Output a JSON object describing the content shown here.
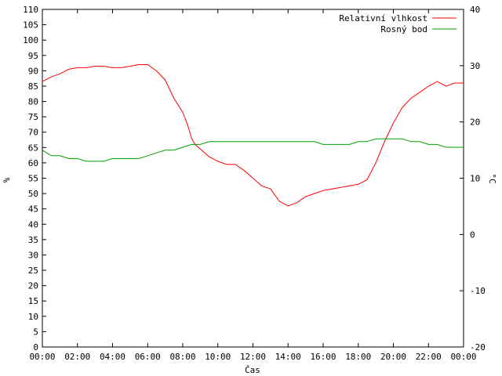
{
  "chart_data": {
    "type": "line",
    "xlabel": "Čas",
    "ylabel_left": "%",
    "ylabel_right": "°C",
    "ylim_left": [
      0,
      110
    ],
    "ylim_right": [
      -20,
      40
    ],
    "yticks_left": [
      "0",
      "5",
      "10",
      "15",
      "20",
      "25",
      "30",
      "35",
      "40",
      "45",
      "50",
      "55",
      "60",
      "65",
      "70",
      "75",
      "80",
      "85",
      "90",
      "95",
      "100",
      "105",
      "110"
    ],
    "yticks_right": [
      "-20",
      "-10",
      "0",
      "10",
      "20",
      "30",
      "40"
    ],
    "xticks": [
      "00:00",
      "02:00",
      "04:00",
      "06:00",
      "08:00",
      "10:00",
      "12:00",
      "14:00",
      "16:00",
      "18:00",
      "20:00",
      "22:00",
      "00:00"
    ],
    "xlim_hours": [
      0,
      24
    ],
    "grid": false,
    "legend_position": "top-right",
    "series": [
      {
        "name": "Relativní vlhkost",
        "axis": "left",
        "color": "#ff0000",
        "points": [
          [
            0,
            86.5
          ],
          [
            0.5,
            88
          ],
          [
            1,
            89
          ],
          [
            1.5,
            90.5
          ],
          [
            2,
            91
          ],
          [
            2.5,
            91
          ],
          [
            3,
            91.5
          ],
          [
            3.5,
            91.5
          ],
          [
            4,
            91
          ],
          [
            4.5,
            91
          ],
          [
            5,
            91.5
          ],
          [
            5.5,
            92
          ],
          [
            6,
            92
          ],
          [
            6.5,
            90
          ],
          [
            7,
            87
          ],
          [
            7.5,
            81
          ],
          [
            8,
            76.5
          ],
          [
            8.3,
            72
          ],
          [
            8.5,
            68
          ],
          [
            8.7,
            66
          ],
          [
            9,
            64.5
          ],
          [
            9.5,
            62
          ],
          [
            10,
            60.5
          ],
          [
            10.5,
            59.5
          ],
          [
            11,
            59.5
          ],
          [
            11.5,
            57.5
          ],
          [
            12,
            55
          ],
          [
            12.5,
            52.5
          ],
          [
            13,
            51.5
          ],
          [
            13.5,
            47.5
          ],
          [
            14,
            46
          ],
          [
            14.5,
            47
          ],
          [
            15,
            49
          ],
          [
            15.5,
            50
          ],
          [
            16,
            51
          ],
          [
            16.5,
            51.5
          ],
          [
            17,
            52
          ],
          [
            17.5,
            52.5
          ],
          [
            18,
            53
          ],
          [
            18.5,
            54.5
          ],
          [
            19,
            60
          ],
          [
            19.5,
            67
          ],
          [
            20,
            73
          ],
          [
            20.5,
            78
          ],
          [
            21,
            81
          ],
          [
            21.5,
            83
          ],
          [
            22,
            85
          ],
          [
            22.5,
            86.5
          ],
          [
            23,
            85
          ],
          [
            23.5,
            86
          ],
          [
            24,
            86
          ]
        ]
      },
      {
        "name": "Rosný bod",
        "axis": "right",
        "color": "#00a000",
        "points": [
          [
            0,
            15
          ],
          [
            0.5,
            14
          ],
          [
            1,
            14
          ],
          [
            1.5,
            13.5
          ],
          [
            2,
            13.5
          ],
          [
            2.5,
            13
          ],
          [
            3,
            13
          ],
          [
            3.5,
            13
          ],
          [
            4,
            13.5
          ],
          [
            4.5,
            13.5
          ],
          [
            5,
            13.5
          ],
          [
            5.5,
            13.5
          ],
          [
            6,
            14
          ],
          [
            6.5,
            14.5
          ],
          [
            7,
            15
          ],
          [
            7.5,
            15
          ],
          [
            8,
            15.5
          ],
          [
            8.5,
            16
          ],
          [
            9,
            16
          ],
          [
            9.5,
            16.5
          ],
          [
            10,
            16.5
          ],
          [
            10.5,
            16.5
          ],
          [
            11,
            16.5
          ],
          [
            11.5,
            16.5
          ],
          [
            12,
            16.5
          ],
          [
            12.5,
            16.5
          ],
          [
            13,
            16.5
          ],
          [
            13.5,
            16.5
          ],
          [
            14,
            16.5
          ],
          [
            14.5,
            16.5
          ],
          [
            15,
            16.5
          ],
          [
            15.5,
            16.5
          ],
          [
            16,
            16
          ],
          [
            16.5,
            16
          ],
          [
            17,
            16
          ],
          [
            17.5,
            16
          ],
          [
            18,
            16.5
          ],
          [
            18.5,
            16.5
          ],
          [
            19,
            17
          ],
          [
            19.5,
            17
          ],
          [
            20,
            17
          ],
          [
            20.5,
            17
          ],
          [
            21,
            16.5
          ],
          [
            21.5,
            16.5
          ],
          [
            22,
            16
          ],
          [
            22.5,
            16
          ],
          [
            23,
            15.5
          ],
          [
            23.5,
            15.5
          ],
          [
            24,
            15.5
          ]
        ]
      }
    ]
  }
}
